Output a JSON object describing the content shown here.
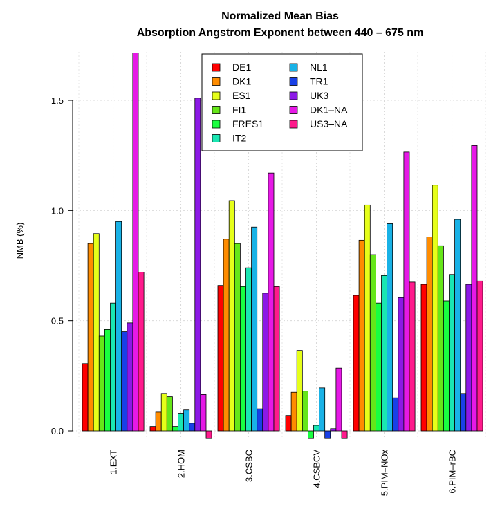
{
  "chart_data": {
    "type": "bar",
    "title": "Normalized Mean Bias",
    "subtitle": "Absorption Angstrom Exponent between 440 – 675 nm",
    "ylabel": "NMB (%)",
    "xlabel": "",
    "ylim": [
      -0.05,
      1.72
    ],
    "yticks": [
      0.0,
      0.5,
      1.0,
      1.5
    ],
    "ytick_labels": [
      "0.0",
      "0.5",
      "1.0",
      "1.5"
    ],
    "grid": true,
    "legend_position": "top-center",
    "categories": [
      "1.EXT",
      "2.HOM",
      "3.CSBC",
      "4.CSBCV",
      "5.PIM–NOx",
      "6.PIM–rBC"
    ],
    "series": [
      {
        "name": "DE1",
        "color": "#ff0000",
        "values": [
          0.305,
          0.02,
          0.66,
          0.07,
          0.615,
          0.665
        ]
      },
      {
        "name": "DK1",
        "color": "#ff8c00",
        "values": [
          0.85,
          0.085,
          0.87,
          0.175,
          0.865,
          0.88
        ]
      },
      {
        "name": "ES1",
        "color": "#e6ff1a",
        "values": [
          0.895,
          0.17,
          1.045,
          0.365,
          1.025,
          1.115
        ]
      },
      {
        "name": "FI1",
        "color": "#66e619",
        "values": [
          0.43,
          0.155,
          0.85,
          0.18,
          0.8,
          0.84
        ]
      },
      {
        "name": "FRES1",
        "color": "#19ff40",
        "values": [
          0.46,
          0.02,
          0.655,
          -0.035,
          0.58,
          0.59
        ]
      },
      {
        "name": "IT2",
        "color": "#1ae6b2",
        "values": [
          0.58,
          0.08,
          0.74,
          0.025,
          0.705,
          0.71
        ]
      },
      {
        "name": "NL1",
        "color": "#19b2e6",
        "values": [
          0.95,
          0.095,
          0.925,
          0.195,
          0.94,
          0.96
        ]
      },
      {
        "name": "TR1",
        "color": "#1940e6",
        "values": [
          0.45,
          0.035,
          0.1,
          -0.035,
          0.15,
          0.17
        ]
      },
      {
        "name": "UK3",
        "color": "#8c19e6",
        "values": [
          0.49,
          1.51,
          0.625,
          0.01,
          0.605,
          0.665
        ]
      },
      {
        "name": "DK1–NA",
        "color": "#e619e6",
        "values": [
          1.715,
          0.165,
          1.17,
          0.285,
          1.265,
          1.295
        ]
      },
      {
        "name": "US3–NA",
        "color": "#ff1a8c",
        "values": [
          0.72,
          -0.035,
          0.655,
          -0.035,
          0.675,
          0.68
        ]
      }
    ]
  }
}
